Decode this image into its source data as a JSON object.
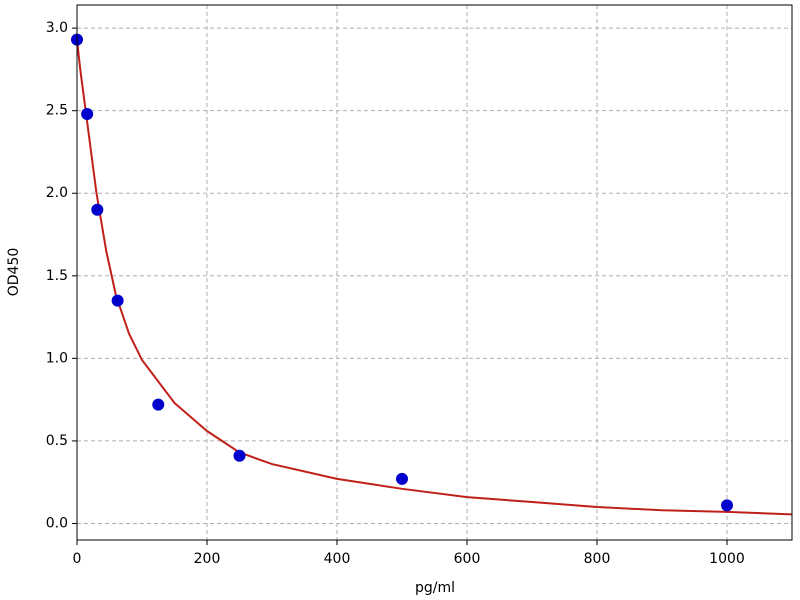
{
  "chart_data": {
    "type": "scatter",
    "xlabel": "pg/ml",
    "ylabel": "OD450",
    "xlim": [
      0,
      1100
    ],
    "ylim": [
      -0.1,
      3.14
    ],
    "xticks": [
      0,
      200,
      400,
      600,
      800,
      1000
    ],
    "yticks": [
      {
        "value": 0,
        "label": "0.0"
      },
      0.5,
      {
        "value": 1,
        "label": "1.0"
      },
      1.5,
      {
        "value": 2,
        "label": "2.0"
      },
      2.5,
      {
        "value": 3,
        "label": "3.0"
      }
    ],
    "grid": true,
    "series": [
      {
        "type": "line",
        "color": "#c0201a",
        "x": [
          0,
          5,
          15,
          30,
          45,
          60,
          80,
          100,
          150,
          200,
          250,
          300,
          400,
          500,
          600,
          700,
          800,
          900,
          1000,
          1100
        ],
        "values": [
          2.93,
          2.75,
          2.45,
          2.0,
          1.65,
          1.38,
          1.15,
          0.99,
          0.73,
          0.56,
          0.43,
          0.36,
          0.27,
          0.21,
          0.16,
          0.13,
          0.1,
          0.08,
          0.07,
          0.055
        ]
      },
      {
        "type": "scatter",
        "color": "#0000cc",
        "x": [
          0,
          15.6,
          31.25,
          62.5,
          125,
          250,
          500,
          1000
        ],
        "values": [
          2.93,
          2.48,
          1.9,
          1.35,
          0.72,
          0.41,
          0.27,
          0.11
        ]
      }
    ]
  }
}
